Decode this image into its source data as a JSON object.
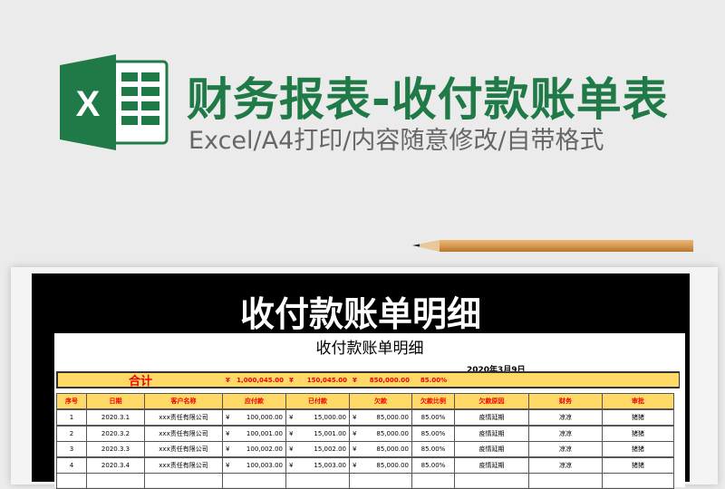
{
  "banner": {
    "title": "财务报表-收付款账单表",
    "subtitle": "Excel/A4打印/内容随意修改/自带格式",
    "logo_letter": "X"
  },
  "colors": {
    "excel_green": "#1f7a47",
    "header_yellow": "#ffd966",
    "header_text": "#e00000"
  },
  "sheet": {
    "frame_title": "收付款账单明细",
    "title": "收付款账单明细",
    "date": "2020年3月9日",
    "totals": {
      "label": "合计",
      "currency": "¥",
      "payable": "1,000,045.00",
      "paid": "150,045.00",
      "owed": "850,000.00",
      "ratio": "85.00%"
    },
    "columns": [
      "序号",
      "日期",
      "客户名称",
      "应付款",
      "已付款",
      "欠款",
      "欠款比例",
      "欠款原因",
      "财务",
      "审批"
    ],
    "rows": [
      {
        "no": "1",
        "date": "2020.3.1",
        "client": "xxx责任有限公司",
        "payable": "100,000.00",
        "paid": "15,000.00",
        "owed": "85,000.00",
        "ratio": "85.00%",
        "reason": "疫情延期",
        "finance": "凉凉",
        "approve": "猪猪"
      },
      {
        "no": "2",
        "date": "2020.3.2",
        "client": "xxx责任有限公司",
        "payable": "100,001.00",
        "paid": "15,001.00",
        "owed": "85,000.00",
        "ratio": "85.00%",
        "reason": "疫情延期",
        "finance": "凉凉",
        "approve": "猪猪"
      },
      {
        "no": "3",
        "date": "2020.3.3",
        "client": "xxx责任有限公司",
        "payable": "100,002.00",
        "paid": "15,002.00",
        "owed": "85,000.00",
        "ratio": "85.00%",
        "reason": "疫情延期",
        "finance": "凉凉",
        "approve": "猪猪"
      },
      {
        "no": "4",
        "date": "2020.3.4",
        "client": "xxx责任有限公司",
        "payable": "100,003.00",
        "paid": "15,003.00",
        "owed": "85,000.00",
        "ratio": "85.00%",
        "reason": "疫情延期",
        "finance": "凉凉",
        "approve": "猪猪"
      }
    ]
  }
}
